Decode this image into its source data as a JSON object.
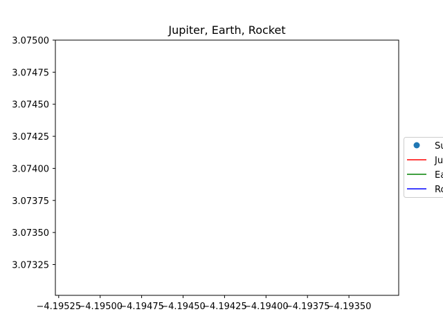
{
  "chart_data": {
    "type": "line",
    "title": "Jupiter, Earth, Rocket",
    "xlabel": "",
    "ylabel": "",
    "xlim": [
      -4.19527,
      -4.1932
    ],
    "ylim": [
      3.07301,
      3.075
    ],
    "x_ticks": [
      -4.19525,
      -4.195,
      -4.19475,
      -4.1945,
      -4.19425,
      -4.194,
      -4.19375,
      -4.1935
    ],
    "x_tick_labels": [
      "−4.19525",
      "−4.19500",
      "−4.19475",
      "−4.19450",
      "−4.19425",
      "−4.19400",
      "−4.19375",
      "−4.19350"
    ],
    "y_ticks": [
      3.07325,
      3.0735,
      3.07375,
      3.074,
      3.07425,
      3.0745,
      3.07475,
      3.075
    ],
    "y_tick_labels": [
      "3.07325",
      "3.07350",
      "3.07375",
      "3.07400",
      "3.07425",
      "3.07450",
      "3.07475",
      "3.07500"
    ],
    "grid": false,
    "legend_position": "center-right, outside plot (clipped)",
    "series": [
      {
        "name": "Sun",
        "marker": "circle",
        "color": "#1f77b4",
        "points": []
      },
      {
        "name": "Jupiter",
        "marker": "line",
        "color": "#ff0000",
        "points": []
      },
      {
        "name": "Earth",
        "marker": "line",
        "color": "#008000",
        "points": []
      },
      {
        "name": "Rocket",
        "marker": "line",
        "color": "#0000ff",
        "points": []
      }
    ],
    "legend_visible_text": [
      "Su",
      "Ju",
      "Ea",
      "Ro"
    ]
  }
}
